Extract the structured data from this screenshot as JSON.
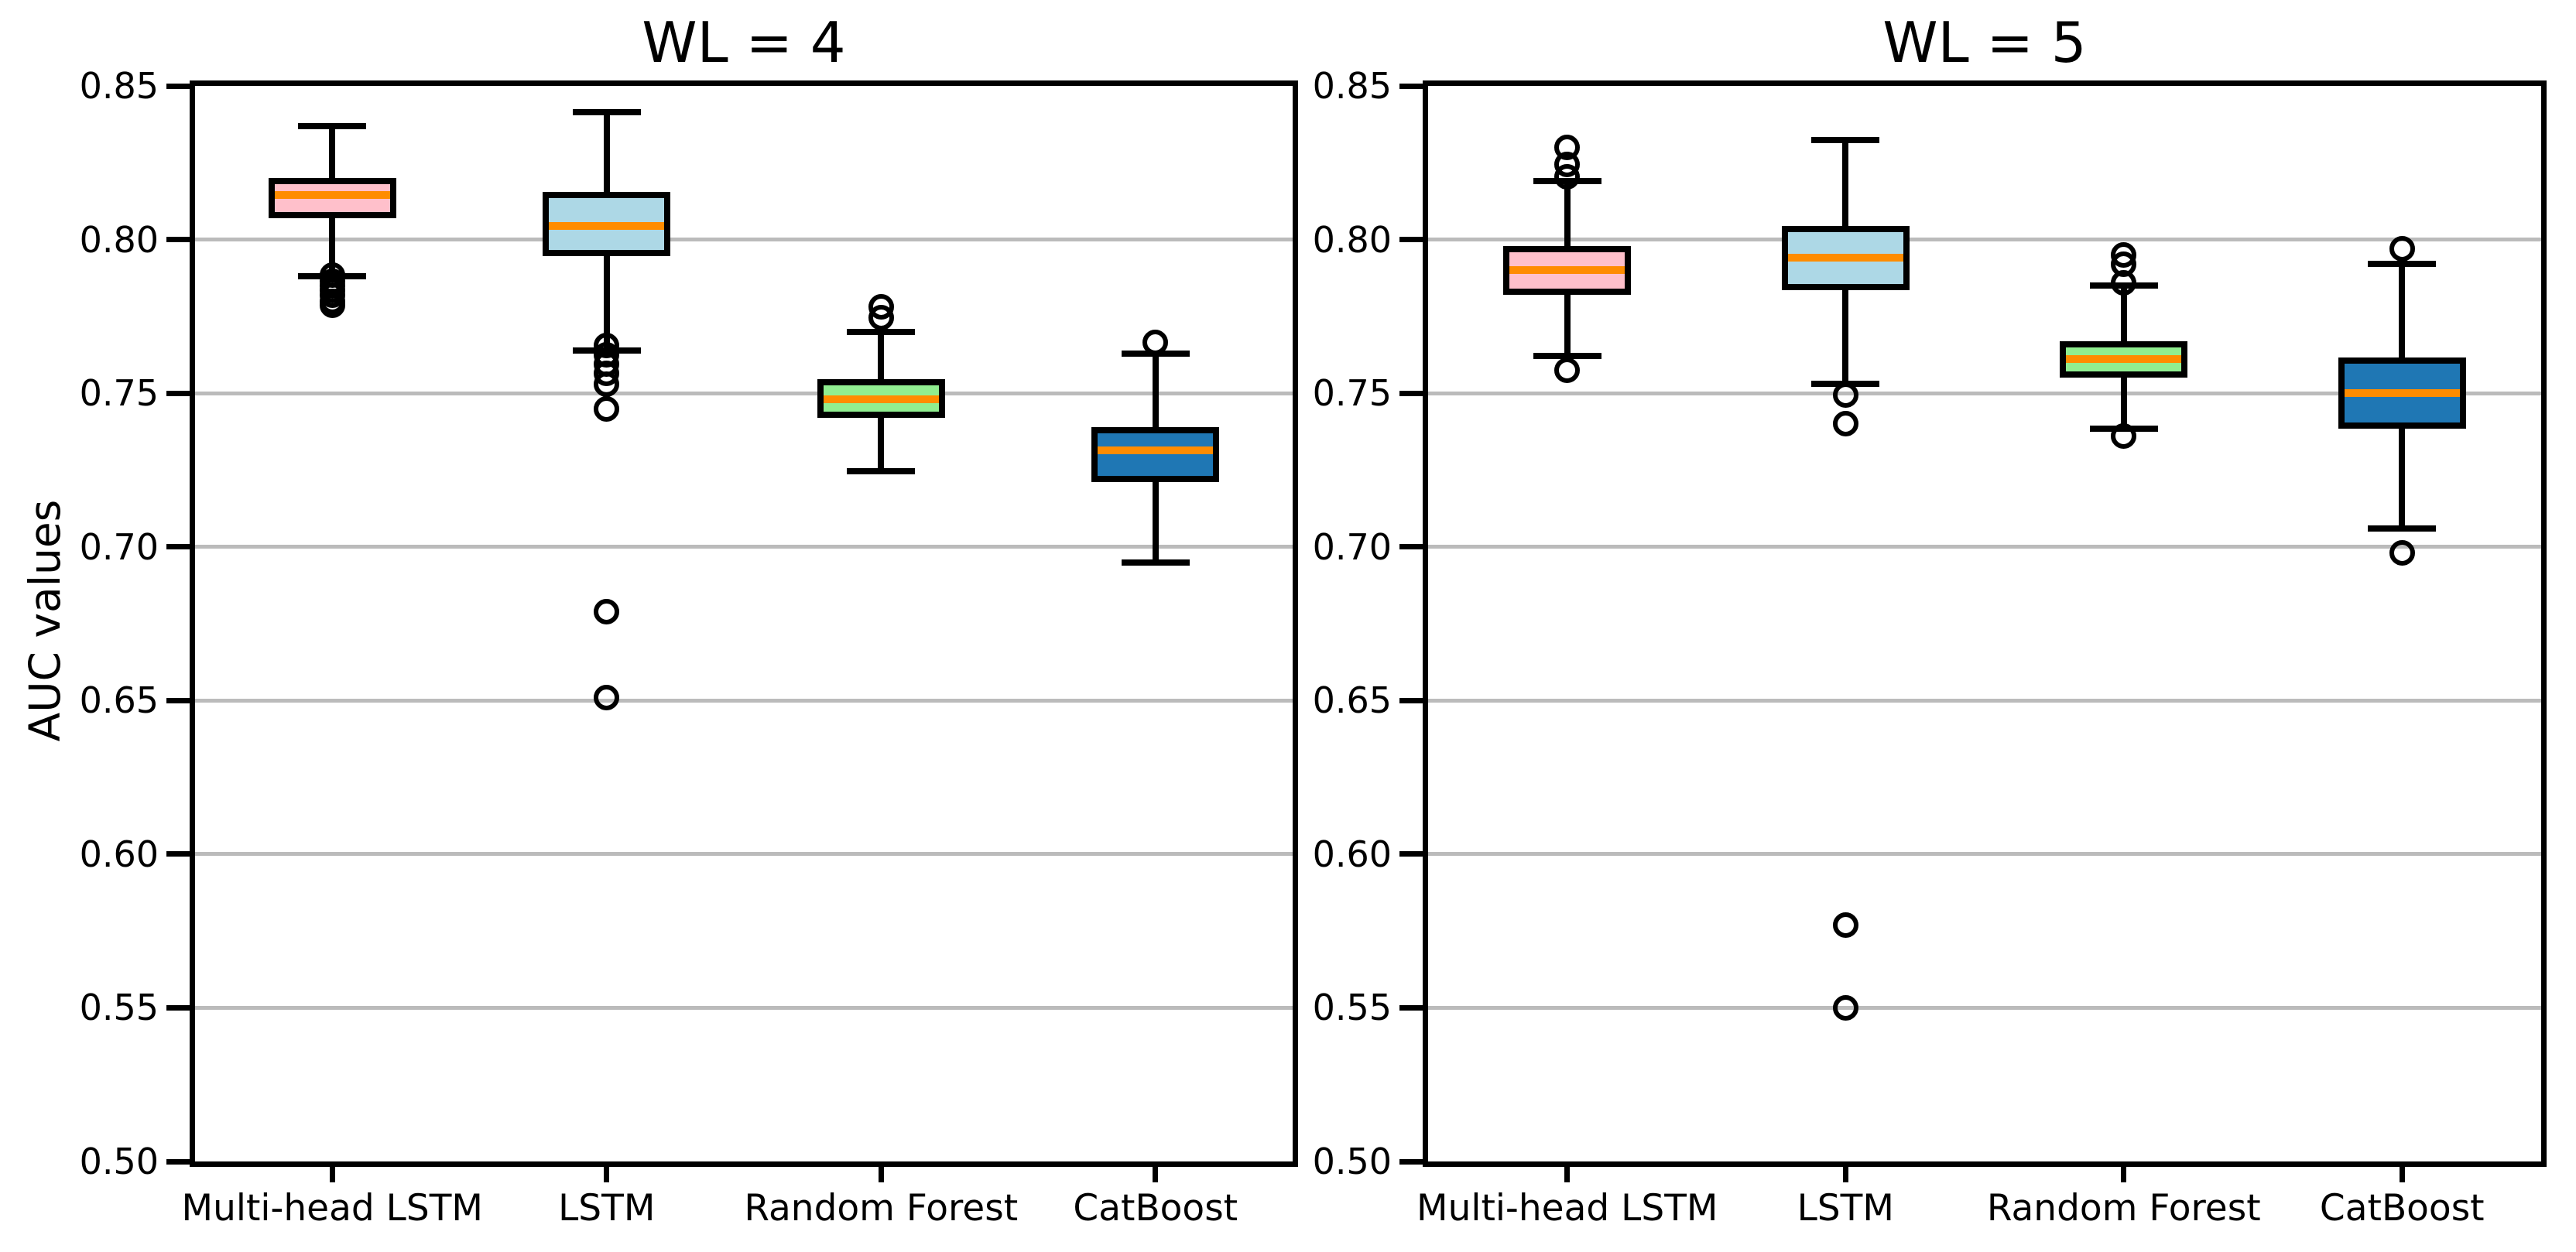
{
  "figure": {
    "background_color": "#FFFFFF",
    "text_color": "#000000",
    "gridline_color": "#BBBBBB",
    "spine_color": "#000000",
    "median_color": "#FF8C00",
    "outlier_marker": "open-circle"
  },
  "chart_data": [
    {
      "type": "boxplot",
      "title": "WL = 4",
      "ylabel": "AUC values",
      "ylim": [
        0.5,
        0.85
      ],
      "yticks": [
        0.85,
        0.8,
        0.75,
        0.7,
        0.65,
        0.6,
        0.55,
        0.5
      ],
      "grid": "horizontal",
      "categories": [
        "Multi-head LSTM",
        "LSTM",
        "Random Forest",
        "CatBoost"
      ],
      "series": [
        {
          "name": "Multi-head LSTM",
          "color": "#FFC0CB",
          "whisker_high": 0.837,
          "q3": 0.82,
          "median": 0.8145,
          "q1": 0.807,
          "whisker_low": 0.788,
          "outliers": [
            0.7885,
            0.7865,
            0.785,
            0.7835,
            0.782,
            0.78,
            0.7785
          ]
        },
        {
          "name": "LSTM",
          "color": "#ADD8E6",
          "whisker_high": 0.8415,
          "q3": 0.8155,
          "median": 0.8045,
          "q1": 0.7945,
          "whisker_low": 0.764,
          "outliers": [
            0.7655,
            0.7625,
            0.7595,
            0.7565,
            0.753,
            0.745,
            0.679,
            0.651
          ]
        },
        {
          "name": "Random Forest",
          "color": "#90EE90",
          "whisker_high": 0.77,
          "q3": 0.7545,
          "median": 0.748,
          "q1": 0.742,
          "whisker_low": 0.7245,
          "outliers": [
            0.778,
            0.7745
          ]
        },
        {
          "name": "CatBoost",
          "color": "#1F77B4",
          "whisker_high": 0.763,
          "q3": 0.739,
          "median": 0.7315,
          "q1": 0.721,
          "whisker_low": 0.695,
          "outliers": [
            0.7665
          ]
        }
      ]
    },
    {
      "type": "boxplot",
      "title": "WL = 5",
      "ylabel": "AUC values",
      "ylim": [
        0.5,
        0.85
      ],
      "yticks": [
        0.85,
        0.8,
        0.75,
        0.7,
        0.65,
        0.6,
        0.55,
        0.5
      ],
      "grid": "horizontal",
      "categories": [
        "Multi-head LSTM",
        "LSTM",
        "Random Forest",
        "CatBoost"
      ],
      "series": [
        {
          "name": "Multi-head LSTM",
          "color": "#FFC0CB",
          "whisker_high": 0.819,
          "q3": 0.798,
          "median": 0.79,
          "q1": 0.782,
          "whisker_low": 0.762,
          "outliers": [
            0.83,
            0.8245,
            0.8205,
            0.7575
          ]
        },
        {
          "name": "LSTM",
          "color": "#ADD8E6",
          "whisker_high": 0.8325,
          "q3": 0.8045,
          "median": 0.794,
          "q1": 0.7835,
          "whisker_low": 0.753,
          "outliers": [
            0.7495,
            0.74,
            0.577,
            0.55
          ]
        },
        {
          "name": "Random Forest",
          "color": "#90EE90",
          "whisker_high": 0.785,
          "q3": 0.767,
          "median": 0.761,
          "q1": 0.755,
          "whisker_low": 0.7385,
          "outliers": [
            0.795,
            0.792,
            0.786,
            0.736
          ]
        },
        {
          "name": "CatBoost",
          "color": "#1F77B4",
          "whisker_high": 0.792,
          "q3": 0.7615,
          "median": 0.75,
          "q1": 0.7385,
          "whisker_low": 0.706,
          "outliers": [
            0.797,
            0.698
          ]
        }
      ]
    }
  ]
}
